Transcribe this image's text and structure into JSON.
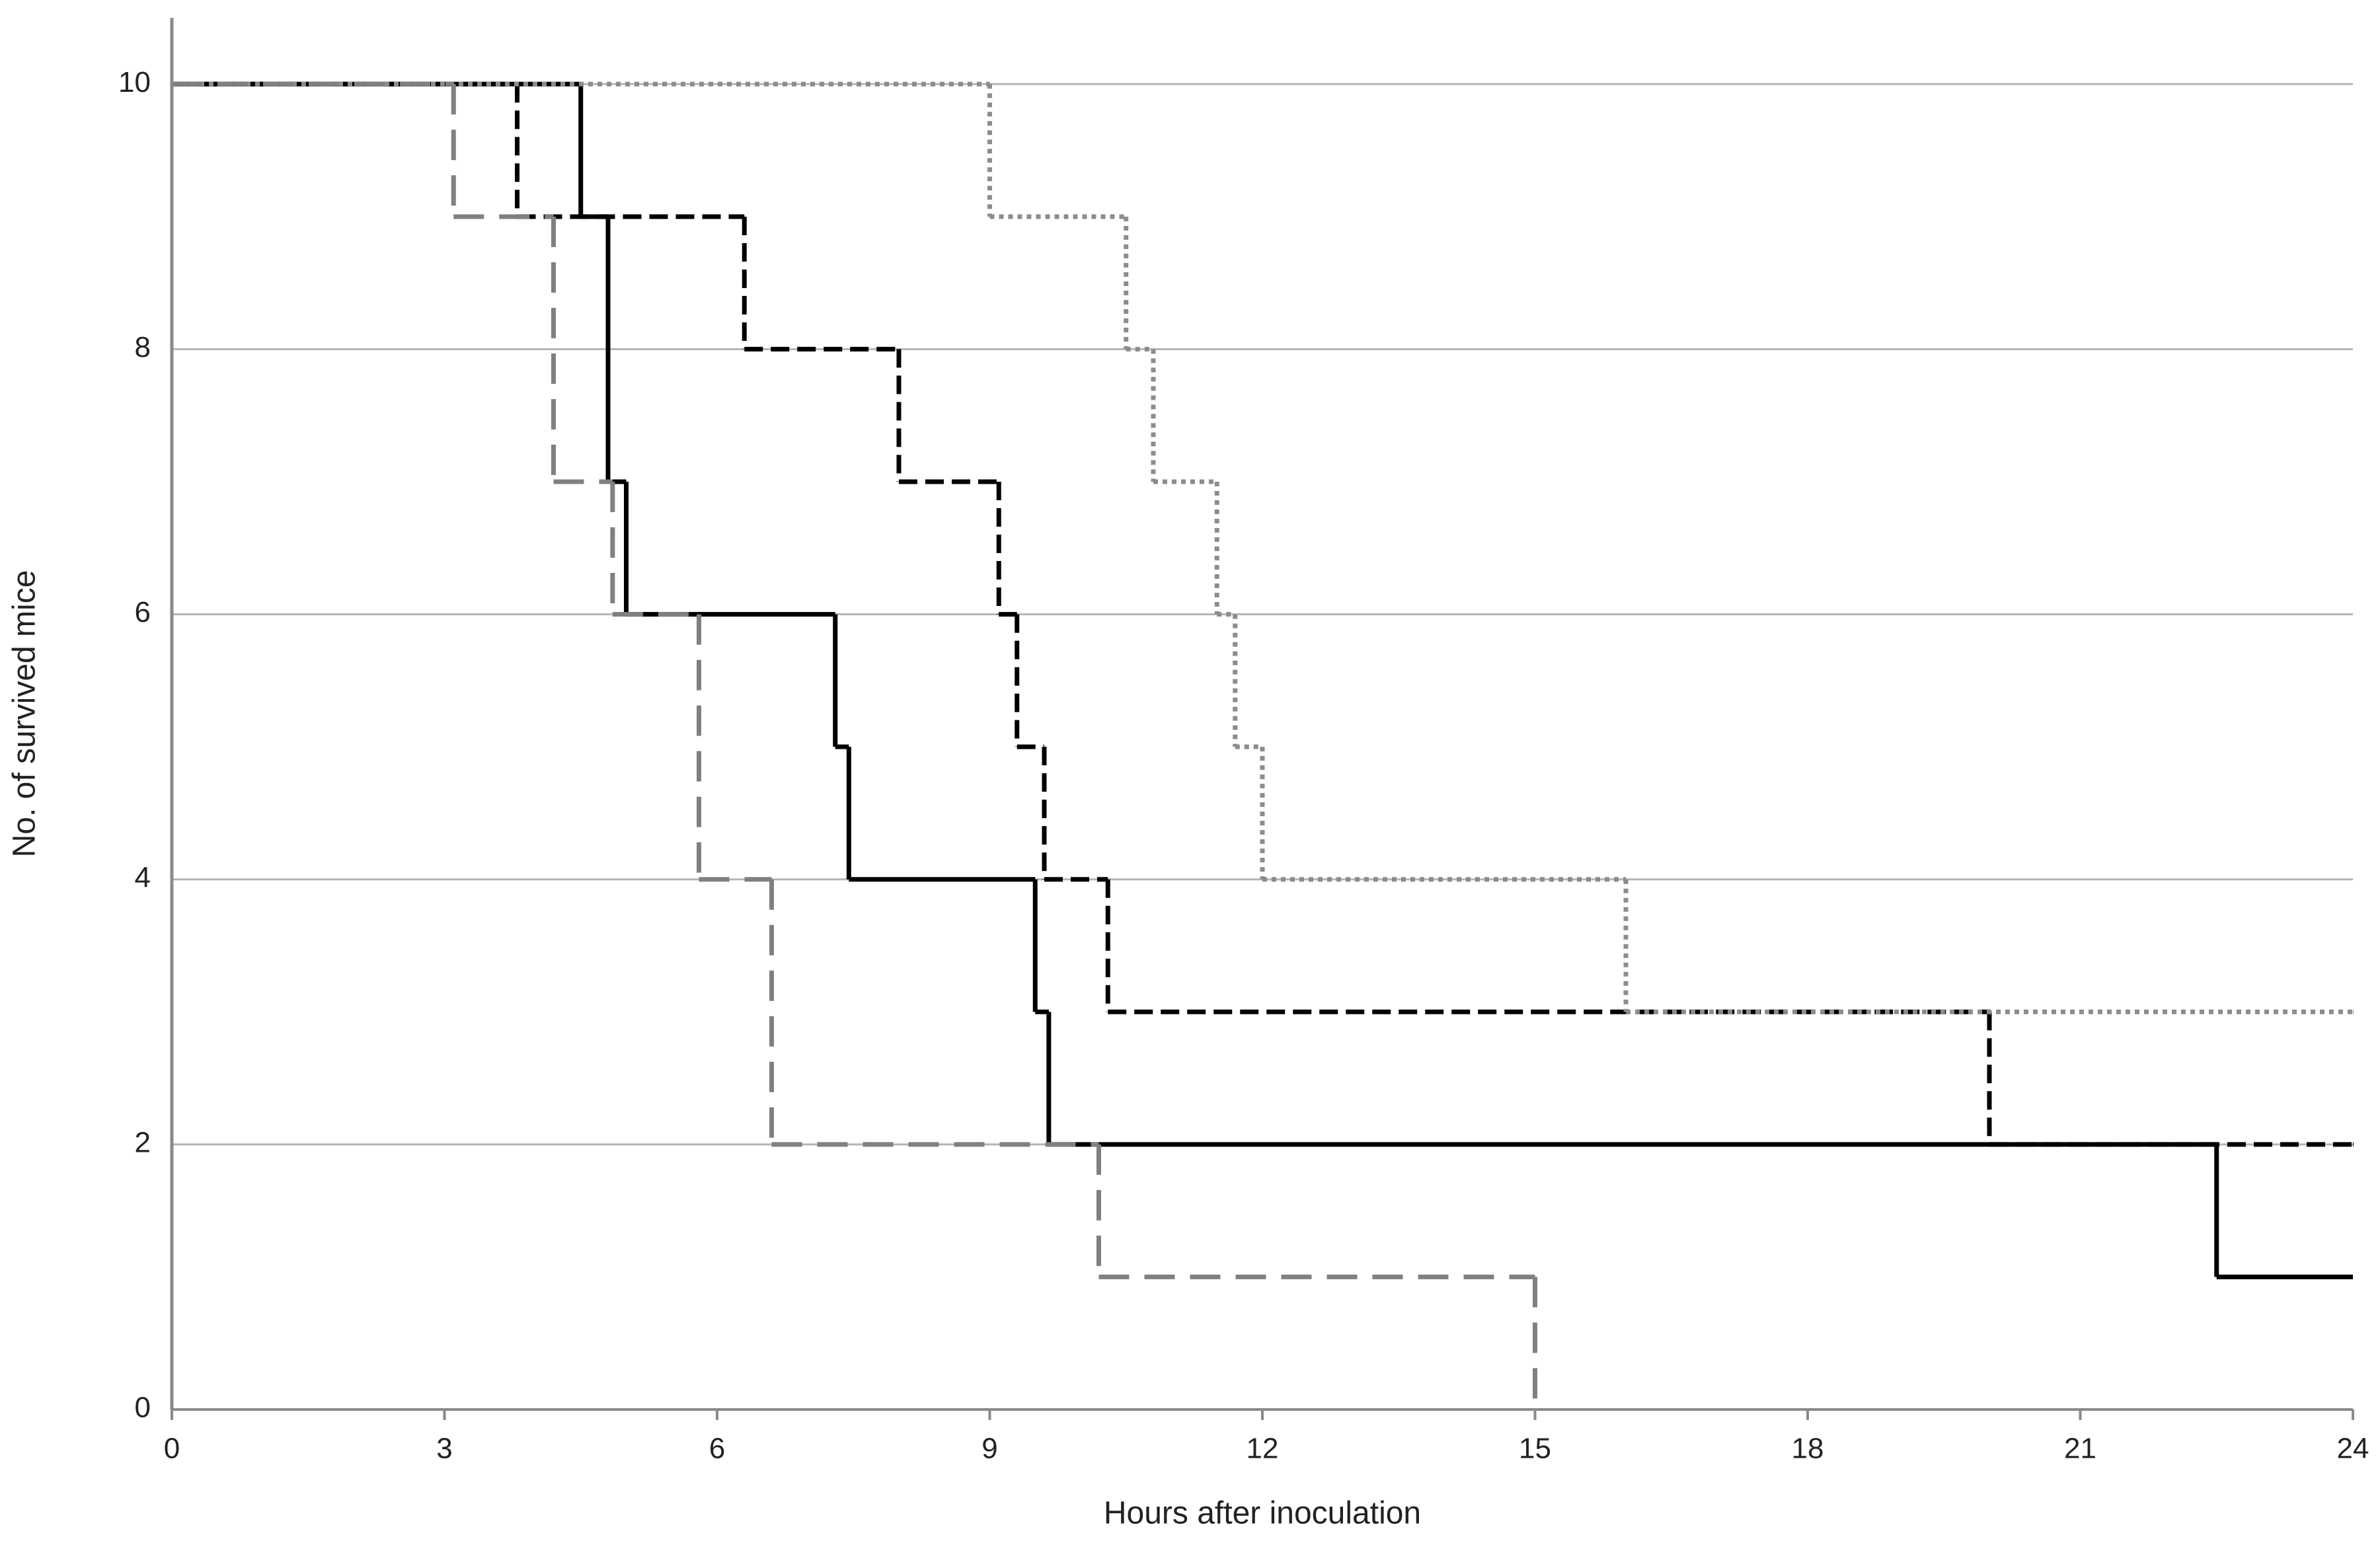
{
  "chart_data": {
    "type": "step",
    "x_label": "Hours after inoculation",
    "y_label": "No. of survived mice",
    "xlim": [
      0,
      24
    ],
    "xticks": [
      0,
      3,
      6,
      9,
      12,
      15,
      18,
      21,
      24
    ],
    "ylim": [
      0,
      10.5
    ],
    "yticks": [
      0,
      2,
      4,
      6,
      8,
      10
    ],
    "grid": true,
    "series": [
      {
        "color": "#000000",
        "dash": "solid",
        "x": [
          0,
          4.5,
          4.8,
          5,
          7.3,
          7.45,
          9.5,
          9.65,
          22.5,
          24
        ],
        "values": [
          10,
          9,
          7,
          6,
          5,
          4,
          3,
          2,
          1,
          1
        ]
      },
      {
        "color": "#000000",
        "dash": "dashed",
        "x": [
          0,
          3.8,
          6.3,
          8,
          9.1,
          9.3,
          9.6,
          10.3,
          20,
          24
        ],
        "values": [
          10,
          9,
          8,
          7,
          6,
          5,
          4,
          3,
          2,
          2
        ]
      },
      {
        "color": "#8c8c8c",
        "dash": "dotted",
        "x": [
          0,
          9,
          10.5,
          10.8,
          11.5,
          11.7,
          12,
          16,
          24
        ],
        "values": [
          10,
          9,
          8,
          7,
          6,
          5,
          4,
          3,
          3
        ]
      },
      {
        "color": "#808080",
        "dash": "longdash",
        "x": [
          0,
          3.1,
          4.2,
          4.85,
          5.8,
          6.6,
          10.2,
          15
        ],
        "values": [
          10,
          9,
          7,
          6,
          4,
          2,
          1,
          0
        ]
      }
    ]
  }
}
